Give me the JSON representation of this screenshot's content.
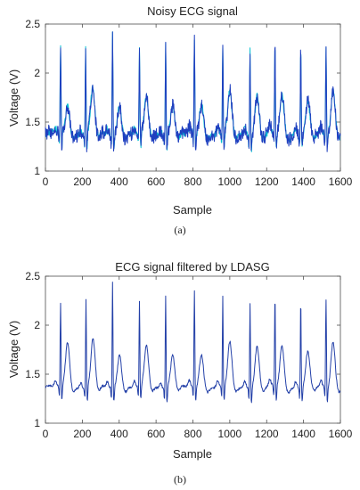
{
  "figure": {
    "captions": [
      "(a)",
      "(b)"
    ]
  },
  "chart_data": [
    {
      "type": "line",
      "title": "Noisy ECG signal",
      "xlabel": "Sample",
      "ylabel": "Voltage (V)",
      "xlim": [
        0,
        1600
      ],
      "ylim": [
        1,
        2.5
      ],
      "xticks": [
        "0",
        "200",
        "400",
        "600",
        "800",
        "1000",
        "1200",
        "1400",
        "1600"
      ],
      "yticks": [
        "1",
        "1.5",
        "2",
        "2.5"
      ],
      "grid": false,
      "noisy": true,
      "colors": [
        "#1f3fbf",
        "#00c0d0"
      ],
      "series": [
        {
          "beats": [
            {
              "x": 82,
              "peak": 2.27,
              "t": 1.67
            },
            {
              "x": 218,
              "peak": 2.28,
              "t": 1.84
            },
            {
              "x": 364,
              "peak": 2.46,
              "t": 1.68
            },
            {
              "x": 510,
              "peak": 2.26,
              "t": 1.76
            },
            {
              "x": 652,
              "peak": 2.33,
              "t": 1.68
            },
            {
              "x": 808,
              "peak": 2.34,
              "t": 1.7
            },
            {
              "x": 962,
              "peak": 2.3,
              "t": 1.8
            },
            {
              "x": 1110,
              "peak": 2.26,
              "t": 1.76
            },
            {
              "x": 1245,
              "peak": 2.32,
              "t": 1.77
            },
            {
              "x": 1385,
              "peak": 2.29,
              "t": 1.7
            },
            {
              "x": 1522,
              "peak": 2.27,
              "t": 1.84
            }
          ],
          "baseline": 1.38,
          "min": 1.17,
          "max": 2.46
        }
      ]
    },
    {
      "type": "line",
      "title": "ECG signal filtered by LDASG",
      "xlabel": "Sample",
      "ylabel": "Voltage (V)",
      "xlim": [
        0,
        1600
      ],
      "ylim": [
        1,
        2.5
      ],
      "xticks": [
        "0",
        "200",
        "400",
        "600",
        "800",
        "1000",
        "1200",
        "1400",
        "1600"
      ],
      "yticks": [
        "1",
        "1.5",
        "2",
        "2.5"
      ],
      "grid": false,
      "noisy": false,
      "colors": [
        "#2340a8"
      ],
      "series": [
        {
          "beats": [
            {
              "x": 82,
              "peak": 2.21,
              "t": 1.83
            },
            {
              "x": 220,
              "peak": 2.28,
              "t": 1.86
            },
            {
              "x": 364,
              "peak": 2.46,
              "t": 1.71
            },
            {
              "x": 510,
              "peak": 2.25,
              "t": 1.79
            },
            {
              "x": 652,
              "peak": 2.31,
              "t": 1.7
            },
            {
              "x": 808,
              "peak": 2.35,
              "t": 1.71
            },
            {
              "x": 962,
              "peak": 2.29,
              "t": 1.82
            },
            {
              "x": 1110,
              "peak": 2.25,
              "t": 1.78
            },
            {
              "x": 1245,
              "peak": 2.31,
              "t": 1.79
            },
            {
              "x": 1385,
              "peak": 2.27,
              "t": 1.72
            },
            {
              "x": 1522,
              "peak": 2.28,
              "t": 1.84
            }
          ],
          "baseline": 1.37,
          "min": 1.17,
          "max": 2.46
        }
      ]
    }
  ]
}
